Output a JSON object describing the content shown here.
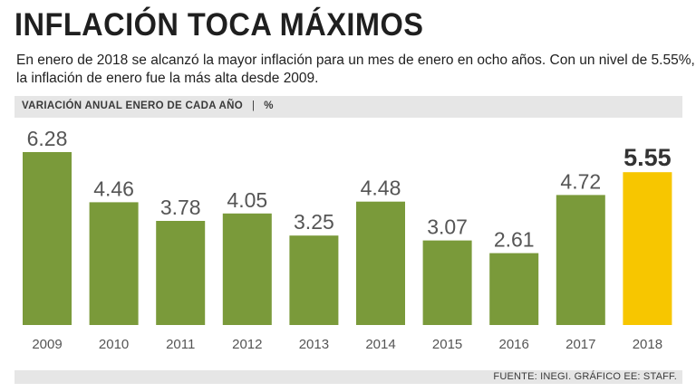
{
  "title": "INFLACIÓN TOCA MÁXIMOS",
  "subtitle_line1": "En enero de 2018 se alcanzó la mayor inflación para un mes de enero en ocho años. Con un nivel de 5.55%,",
  "subtitle_line2": "la inflación de enero fue la más alta desde 2009.",
  "chart_header": "VARIACIÓN ANUAL ENERO DE CADA AÑO",
  "chart_unit": "%",
  "header_separator": "|",
  "source": "FUENTE: INEGI. GRÁFICO EE: STAFF.",
  "colors": {
    "bar": "#7a9a3a",
    "highlight": "#f7c600",
    "label": "#555555",
    "highlight_label": "#333333"
  },
  "chart_data": {
    "type": "bar",
    "categories": [
      "2009",
      "2010",
      "2011",
      "2012",
      "2013",
      "2014",
      "2015",
      "2016",
      "2017",
      "2018"
    ],
    "values": [
      6.28,
      4.46,
      3.78,
      4.05,
      3.25,
      4.48,
      3.07,
      2.61,
      4.72,
      5.55
    ],
    "value_labels": [
      "6.28",
      "4.46",
      "3.78",
      "4.05",
      "3.25",
      "4.48",
      "3.07",
      "2.61",
      "4.72",
      "5.55"
    ],
    "highlight_category": "2018",
    "ylim": [
      0,
      6.28
    ],
    "grid": false,
    "legend": "none"
  }
}
